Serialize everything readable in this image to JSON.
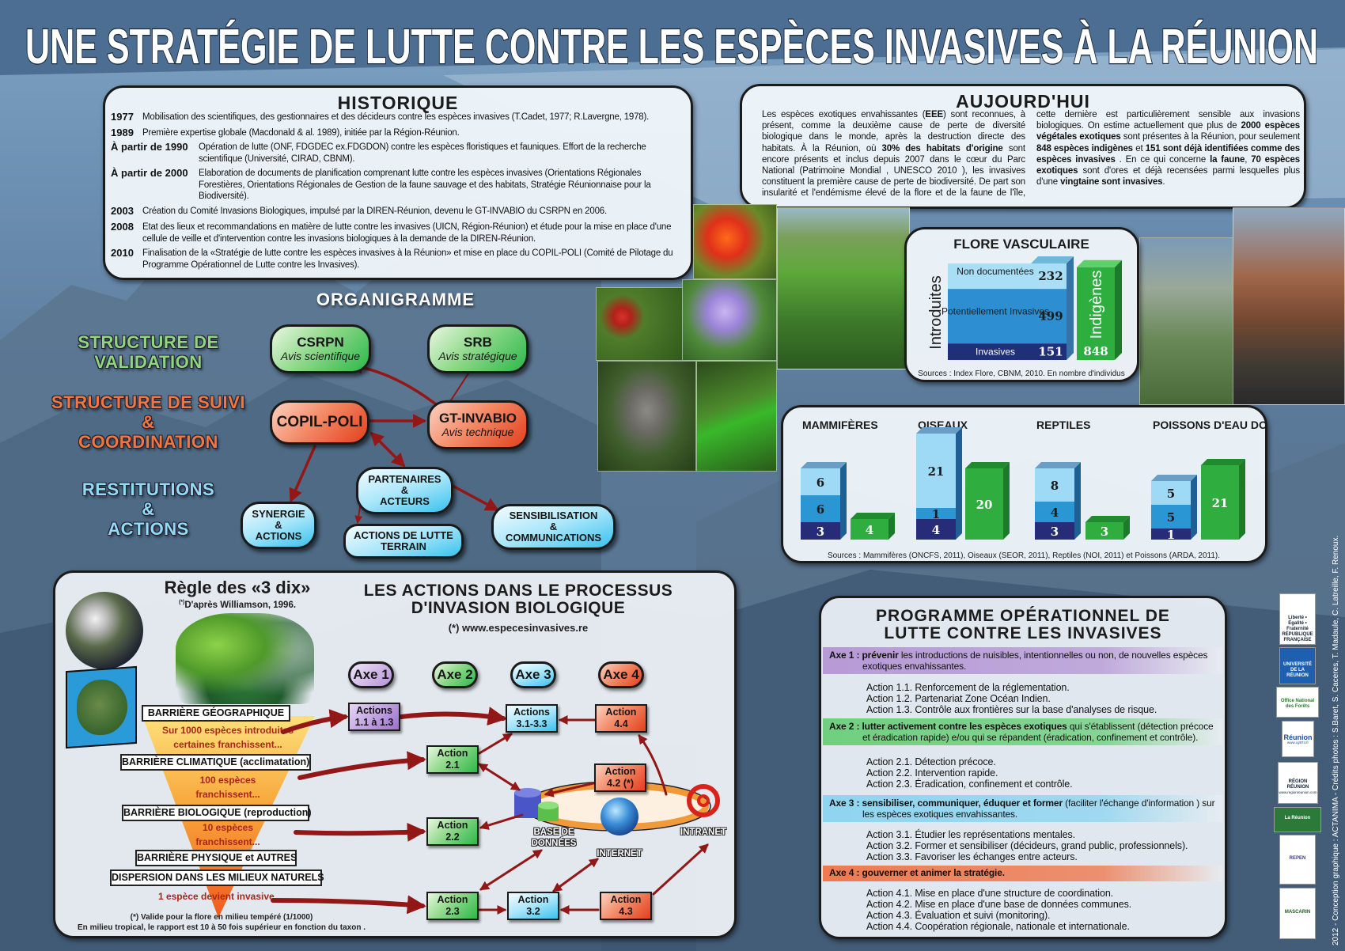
{
  "title": "UNE STRATÉGIE DE LUTTE CONTRE LES ESPÈCES INVASIVES À LA RÉUNION",
  "historique": {
    "title": "HISTORIQUE",
    "entries": [
      {
        "year": "1977",
        "text": "Mobilisation des scientifiques, des gestionnaires et des décideurs contre les espèces invasives (T.Cadet, 1977; R.Lavergne, 1978)."
      },
      {
        "year": "1989",
        "text": "Première expertise globale (Macdonald & al. 1989), initiée par la Région-Réunion."
      },
      {
        "year": "À partir de 1990",
        "text": "Opération de lutte (ONF, FDGDEC ex.FDGDON) contre les espèces floristiques et fauniques.  Effort de la recherche scientifique (Université, CIRAD, CBNM)."
      },
      {
        "year": "À partir de 2000",
        "text": "Elaboration de documents de planification  comprenant lutte contre les espèces invasives (Orientations Régionales Forestières, Orientations Régionales de Gestion de la faune sauvage et des habitats, Stratégie Réunionnaise  pour la Biodiversité)."
      },
      {
        "year": "2003",
        "text": "Création du Comité Invasions Biologiques, impulsé par la DIREN-Réunion, devenu le GT-INVABIO du CSRPN en 2006."
      },
      {
        "year": "2008",
        "text": "Etat des lieux et recommandations en matière de lutte contre les invasives (UICN, Région-Réunion) et étude pour la mise en place d'une cellule de veille et d'intervention contre les invasions biologiques à la demande de la DIREN-Réunion."
      },
      {
        "year": "2010",
        "text": "Finalisation de la «Stratégie de lutte contre les espèces invasives à la Réunion» et mise en place du COPIL-POLI (Comité de Pilotage du  Programme Opérationnel de Lutte contre les Invasives)."
      }
    ]
  },
  "aujourdhui": {
    "title": "AUJOURD'HUI",
    "segments": [
      {
        "text": "Les espèces exotiques envahissantes (",
        "bold": false
      },
      {
        "text": "EEE",
        "bold": true
      },
      {
        "text": ") sont reconnues, à présent, comme la deuxième cause de perte de diversité biologique dans le monde, après la destruction directe des habitats. À la Réunion, où ",
        "bold": false
      },
      {
        "text": "30% des habitats d'origine",
        "bold": true
      },
      {
        "text": " sont encore présents et inclus depuis 2007 dans le cœur du Parc National (Patrimoine Mondial , UNESCO 2010 ), les invasives constituent la première cause de perte de biodiversité. De part son insularité et l'endémisme élevé de la flore et de la faune de l'île, cette dernière est particulièrement sensible aux invasions biologiques. On estime actuellement que plus de ",
        "bold": false
      },
      {
        "text": "2000 espèces végétales exotiques",
        "bold": true
      },
      {
        "text": " sont présentes à la Réunion, pour seulement ",
        "bold": false
      },
      {
        "text": "848 espèces indigènes",
        "bold": true
      },
      {
        "text": " et ",
        "bold": false
      },
      {
        "text": "151 sont déjà identifiées comme des espèces invasives",
        "bold": true
      },
      {
        "text": " . En ce qui concerne ",
        "bold": false
      },
      {
        "text": "la faune",
        "bold": true
      },
      {
        "text": ", ",
        "bold": false
      },
      {
        "text": "70 espèces exotiques",
        "bold": true
      },
      {
        "text": " sont d'ores et déjà recensées parmi lesquelles plus d'une ",
        "bold": false
      },
      {
        "text": "vingtaine sont invasives",
        "bold": true
      },
      {
        "text": ".",
        "bold": false
      }
    ]
  },
  "organigramme": {
    "title": "ORGANIGRAMME",
    "levels": {
      "validation": [
        "STRUCTURE DE",
        "VALIDATION"
      ],
      "suivi": [
        "STRUCTURE DE SUIVI",
        "&",
        "COORDINATION"
      ],
      "restitutions": [
        "RESTITUTIONS",
        "&",
        "ACTIONS"
      ]
    },
    "nodes": {
      "csrpn": {
        "name": "CSRPN",
        "role": "Avis scientifique"
      },
      "srb": {
        "name": "SRB",
        "role": "Avis stratégique"
      },
      "copil": {
        "name": "COPIL-POLI"
      },
      "gt": {
        "name": "GT-INVABIO",
        "role": "Avis technique"
      },
      "partenaires": [
        "PARTENAIRES",
        "&",
        "ACTEURS"
      ],
      "synergie": [
        "SYNERGIE",
        "&",
        "ACTIONS"
      ],
      "lutte": [
        "ACTIONS DE LUTTE",
        "TERRAIN"
      ],
      "sensibilisation": [
        "SENSIBILISATION",
        "&",
        "COMMUNICATIONS"
      ]
    }
  },
  "regle": {
    "title": "Règle des «3 dix»",
    "subtitle_mark": "(*)",
    "subtitle": "D'après Williamson, 1996.",
    "barriers": [
      "BARRIÈRE GÉOGRAPHIQUE",
      "BARRIÈRE CLIMATIQUE (acclimatation)",
      "BARRIÈRE BIOLOGIQUE (reproduction)",
      "BARRIÈRE PHYSIQUE et AUTRES",
      "DISPERSION DANS LES MILIEUX NATURELS"
    ],
    "steps": [
      [
        "Sur 1000 espèces introduites",
        "certaines franchissent..."
      ],
      [
        "100 espèces",
        "franchissent..."
      ],
      [
        "10 espèces",
        "franchissent..."
      ],
      [
        "1 espèce devient invasive."
      ]
    ],
    "footnote": [
      "(*) Valide pour la flore en milieu tempéré (1/1000)",
      "En milieu tropical, le rapport est 10 à 50 fois supérieur en fonction du taxon ."
    ]
  },
  "processus": {
    "title": [
      "LES ACTIONS DANS LE PROCESSUS",
      "D'INVASION BIOLOGIQUE"
    ],
    "url": "(*) www.especesinvasives.re",
    "axes": [
      "Axe 1",
      "Axe 2",
      "Axe 3",
      "Axe 4"
    ],
    "actions": {
      "a1": [
        "Actions",
        "1.1 à 1.3"
      ],
      "a3": [
        "Actions",
        "3.1-3.3"
      ],
      "a44": [
        "Action",
        "4.4"
      ],
      "a21": [
        "Action",
        "2.1"
      ],
      "a42": [
        "Action",
        "4.2 (*)"
      ],
      "a22": [
        "Action",
        "2.2"
      ],
      "a23": [
        "Action",
        "2.3"
      ],
      "a32": [
        "Action",
        "3.2"
      ],
      "a43": [
        "Action",
        "4.3"
      ]
    },
    "network": {
      "database": [
        "BASE DE",
        "DONNÉES"
      ],
      "internet": "INTERNET",
      "intranet": "INTRANET"
    }
  },
  "programme": {
    "title": [
      "PROGRAMME OPÉRATIONNEL DE",
      "LUTTE CONTRE LES INVASIVES"
    ],
    "axes": [
      {
        "label": "Axe 1 :",
        "lead": "prévenir",
        "rest": " les introductions de nuisibles, intentionnelles ou non, de nouvelles espèces exotiques envahissantes.",
        "color": "#b79ad6",
        "actions": [
          "Action 1.1. Renforcement de la réglementation.",
          "Action 1.2. Partenariat Zone Océan Indien.",
          "Action 1.3. Contrôle aux frontières sur la base d'analyses de risque."
        ]
      },
      {
        "label": "Axe 2 :",
        "lead": "lutter activement contre les espèces exotiques",
        "rest": " qui s'établissent (détection précoce et éradication rapide) e/ou qui se répandent  (éradication, confinement et contrôle).",
        "color": "#6fcf7f",
        "actions": [
          "Action 2.1. Détection précoce.",
          "Action 2.2. Intervention rapide.",
          "Action 2.3. Éradication, confinement et contrôle."
        ]
      },
      {
        "label": "Axe 3 :",
        "lead": "sensibiliser, communiquer, éduquer et former",
        "rest": " (faciliter l'échange d'information ) sur les espèces exotiques envahissantes.",
        "color": "#8fd5f0",
        "actions": [
          "Action 3.1. Étudier les représentations mentales.",
          "Action 3.2. Former et sensibiliser (décideurs, grand public, professionnels).",
          "Action 3.3. Favoriser les échanges entre acteurs."
        ]
      },
      {
        "label": "Axe 4 :",
        "lead": "gouverner et animer la stratégie.",
        "rest": "",
        "color": "#ef7a4f",
        "actions": [
          "Action 4.1. Mise en place d'une structure de coordination.",
          "Action 4.2. Mise en place d'une base de données communes.",
          "Action 4.3. Évaluation et suivi (monitoring).",
          "Action 4.4. Coopération régionale, nationale et internationale."
        ]
      }
    ]
  },
  "chart_data": [
    {
      "type": "bar",
      "title": "FLORE VASCULAIRE",
      "stacked": true,
      "categories": [
        "Introduites",
        "Indigènes"
      ],
      "series": [
        {
          "name": "Invasives",
          "values": [
            151,
            null
          ]
        },
        {
          "name": "Potentiellement Invasives",
          "values": [
            499,
            null
          ]
        },
        {
          "name": "Non documentées",
          "values": [
            232,
            null
          ]
        },
        {
          "name": "Indigènes",
          "values": [
            null,
            848
          ]
        }
      ],
      "colors": [
        "#1f2f78",
        "#2d8fd2",
        "#a8def6",
        "#2eae3f"
      ],
      "source": "Sources : Index Flore, CBNM, 2010. En nombre d'individus"
    },
    {
      "type": "bar",
      "title": "",
      "stacked": true,
      "categories": [
        "MAMMIFÈRES",
        "OISEAUX",
        "REPTILES",
        "POISSONS D'EAU DOUCE"
      ],
      "stacked_values": [
        [
          3,
          6,
          6
        ],
        [
          4,
          1,
          21
        ],
        [
          3,
          4,
          8
        ],
        [
          1,
          5,
          5
        ]
      ],
      "green_values": [
        4,
        20,
        3,
        21
      ],
      "colors": {
        "stack": [
          "#262c78",
          "#2a97d4",
          "#9ed9f5"
        ],
        "green": "#2fae3f"
      },
      "source": "Sources : Mammifères (ONCFS, 2011), Oiseaux (SEOR, 2011), Reptiles (NOI, 2011) et Poissons (ARDA, 2011)."
    }
  ],
  "logos": [
    {
      "name": "prefet-reunion",
      "text": "Liberté • Égalité • Fraternité RÉPUBLIQUE FRANÇAISE"
    },
    {
      "name": "universite-reunion",
      "text": "UNIVERSITÉ DE LA RÉUNION"
    },
    {
      "name": "onf",
      "text": "Office National des Forêts"
    },
    {
      "name": "conseil-general",
      "text": "Réunion",
      "sub": "www.cg974.fr"
    },
    {
      "name": "region-reunion",
      "text": "RÉGION RÉUNION",
      "sub": "www.regionreunion.com"
    },
    {
      "name": "parc-national",
      "text": "La Réunion"
    },
    {
      "name": "repen",
      "text": "REPEN"
    },
    {
      "name": "mascarin",
      "text": "MASCARIN"
    }
  ],
  "credits": "2012 - Conception graphique : ACTANIMA - Crédits photos : S.Baret, S. Caceres, T. Madaule, C. Latreille, F. Renoux.",
  "colors": {
    "arrow": "#921717",
    "title": "#ffffff",
    "panel_border": "#1b1b1b"
  }
}
